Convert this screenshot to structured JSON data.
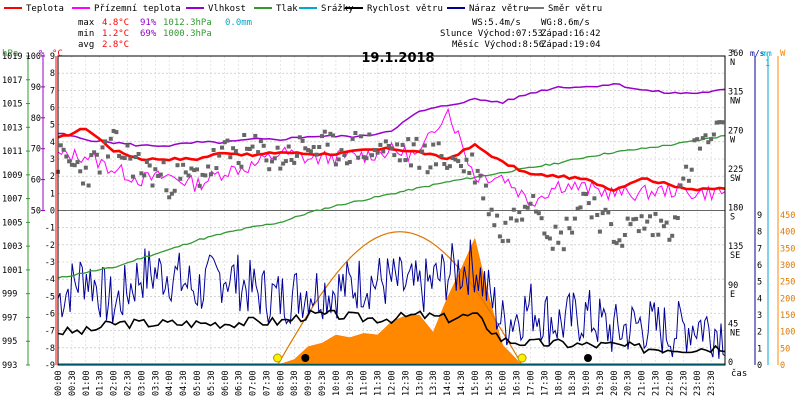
{
  "chart_data": {
    "type": "line",
    "title": "19.1.2018",
    "legend": [
      {
        "key": "temp",
        "label": "Teplota",
        "color": "#ff0000"
      },
      {
        "key": "feels",
        "label": "Přízemní teplota",
        "color": "#ff00ff"
      },
      {
        "key": "hum",
        "label": "Vlhkost",
        "color": "#9900cc"
      },
      {
        "key": "press",
        "label": "Tlak",
        "color": "#339933"
      },
      {
        "key": "rain",
        "label": "Srážky",
        "color": "#00aacc"
      },
      {
        "key": "wind",
        "label": "Rychlost větru",
        "color": "#000000"
      },
      {
        "key": "gust",
        "label": "Náraz větru",
        "color": "#000099"
      },
      {
        "key": "dir",
        "label": "Směr větru",
        "color": "#777777"
      }
    ],
    "stats": {
      "max": {
        "label": "max",
        "temp": "4.8°C",
        "hum": "91%",
        "press": "1012.3hPa",
        "rain": "0.0mm"
      },
      "min": {
        "label": "min",
        "temp": "1.2°C",
        "hum": "69%",
        "press": "1000.3hPa"
      },
      "avg": {
        "label": "avg",
        "temp": "2.8°C"
      }
    },
    "info": {
      "ws": "WS:5.4m/s",
      "wg": "WG:8.6m/s",
      "sun_rise": "Slunce Východ:07:53",
      "sun_set": "Západ:16:42",
      "moon_rise": "Měsíc Východ:8:56",
      "moon_set": "Západ:19:04"
    },
    "axes": {
      "hpa": {
        "unit": "hPa",
        "ticks": [
          "1019",
          "1017",
          "1015",
          "1013",
          "1011",
          "1009",
          "1007",
          "1005",
          "1003",
          "1001",
          "999",
          "997",
          "995",
          "993"
        ]
      },
      "pct": {
        "unit": "%",
        "ticks": [
          "100",
          "90",
          "80",
          "70",
          "60",
          "50"
        ]
      },
      "celsius": {
        "unit": "°C",
        "ticks": [
          "9",
          "8",
          "7",
          "6",
          "5",
          "4",
          "3",
          "2",
          "1",
          "0",
          "-1",
          "-2",
          "-3",
          "-4",
          "-5",
          "-6",
          "-7",
          "-8",
          "-9"
        ]
      },
      "dir": {
        "unit": "°",
        "ticks": [
          {
            "v": "360",
            "c": "N"
          },
          {
            "v": "315",
            "c": "NW"
          },
          {
            "v": "270",
            "c": "W"
          },
          {
            "v": "225",
            "c": "SW"
          },
          {
            "v": "180",
            "c": "S"
          },
          {
            "v": "135",
            "c": "SE"
          },
          {
            "v": "90",
            "c": "E"
          },
          {
            "v": "45",
            "c": "NE"
          },
          {
            "v": "0",
            "c": ""
          }
        ]
      },
      "ms": {
        "unit": "m/s",
        "ticks": [
          "9",
          "8",
          "7",
          "6",
          "5",
          "4",
          "3",
          "2",
          "1",
          "0"
        ]
      },
      "mm": {
        "unit": "mm",
        "ticks": [
          "1",
          "0"
        ]
      },
      "wm2": {
        "unit": "W",
        "ticks": [
          "450",
          "400",
          "350",
          "300",
          "250",
          "200",
          "150",
          "100",
          "50",
          "0"
        ]
      },
      "time": {
        "label": "čas",
        "ticks": [
          "00:00",
          "00:30",
          "01:00",
          "01:30",
          "02:00",
          "02:30",
          "03:00",
          "03:30",
          "04:00",
          "04:30",
          "05:00",
          "05:30",
          "06:00",
          "06:30",
          "07:00",
          "07:30",
          "08:00",
          "08:30",
          "09:00",
          "09:30",
          "10:00",
          "10:30",
          "11:00",
          "11:30",
          "12:00",
          "12:30",
          "13:00",
          "13:30",
          "14:00",
          "14:30",
          "15:00",
          "15:30",
          "16:00",
          "16:30",
          "17:00",
          "17:30",
          "18:00",
          "18:30",
          "19:00",
          "19:30",
          "20:00",
          "20:30",
          "21:00",
          "21:30",
          "22:00",
          "22:30",
          "23:00",
          "23:30"
        ]
      }
    },
    "series_hours": [
      0,
      1,
      2,
      3,
      4,
      5,
      6,
      7,
      8,
      9,
      10,
      11,
      12,
      13,
      14,
      15,
      16,
      17,
      18,
      19,
      20,
      21,
      22,
      23,
      24
    ],
    "temp": [
      4.2,
      4.8,
      3.5,
      3.0,
      3.0,
      3.0,
      3.4,
      3.2,
      3.4,
      3.3,
      3.3,
      3.5,
      3.6,
      3.4,
      3.0,
      3.8,
      2.8,
      2.1,
      2.0,
      1.8,
      1.2,
      1.9,
      1.5,
      1.2,
      1.3
    ],
    "feels": [
      3.2,
      3.2,
      2.4,
      1.8,
      2.0,
      1.5,
      2.3,
      2.6,
      3.4,
      3.0,
      3.1,
      3.2,
      3.5,
      3.2,
      6.0,
      2.0,
      2.0,
      0.5,
      1.5,
      1.3,
      1.0,
      1.0,
      1.2,
      1.0,
      1.1
    ],
    "humidity": [
      75,
      73,
      72,
      71,
      71,
      72,
      72,
      73,
      73,
      74,
      74,
      74,
      76,
      82,
      84,
      86,
      85,
      88,
      90,
      90,
      91,
      89,
      88,
      88,
      89
    ],
    "pressure": [
      1000.3,
      1000.8,
      1001.2,
      1002.0,
      1002.7,
      1003.5,
      1004.1,
      1004.6,
      1005.0,
      1005.8,
      1006.4,
      1006.9,
      1007.4,
      1007.9,
      1008.4,
      1008.8,
      1009.2,
      1009.6,
      1010.0,
      1010.5,
      1010.9,
      1011.2,
      1011.5,
      1011.9,
      1012.3
    ],
    "wind": [
      2.0,
      2.0,
      2.5,
      2.5,
      2.5,
      2.5,
      2.5,
      2.6,
      2.6,
      3.0,
      3.0,
      2.8,
      2.8,
      3.0,
      2.8,
      3.0,
      1.5,
      1.3,
      1.3,
      1.2,
      1.2,
      1.0,
      1.0,
      1.0,
      1.1
    ],
    "gust": [
      4.0,
      5.5,
      3.5,
      5.5,
      5.5,
      4.5,
      5.5,
      4.5,
      4.0,
      4.5,
      4.5,
      5.0,
      5.0,
      4.5,
      5.5,
      6.0,
      2.5,
      3.5,
      2.5,
      3.0,
      2.0,
      2.5,
      2.0,
      2.5,
      2.0
    ],
    "direction": [
      240,
      225,
      255,
      230,
      215,
      220,
      245,
      250,
      240,
      255,
      250,
      255,
      250,
      245,
      240,
      230,
      150,
      205,
      140,
      200,
      150,
      165,
      160,
      255,
      270
    ],
    "rain_mm": 0.0,
    "solar_wm2": {
      "hours": [
        7.9,
        8.5,
        9.0,
        9.5,
        10.0,
        10.5,
        11.0,
        11.5,
        12.0,
        12.5,
        13.0,
        13.5,
        14.0,
        14.5,
        15.0,
        15.5,
        16.0,
        16.7
      ],
      "values": [
        0,
        20,
        55,
        80,
        90,
        100,
        95,
        110,
        130,
        180,
        150,
        120,
        200,
        350,
        380,
        250,
        60,
        0
      ]
    },
    "theoretical_solar": {
      "rise": 7.9,
      "set": 16.7,
      "peak_wm2": 400
    }
  }
}
